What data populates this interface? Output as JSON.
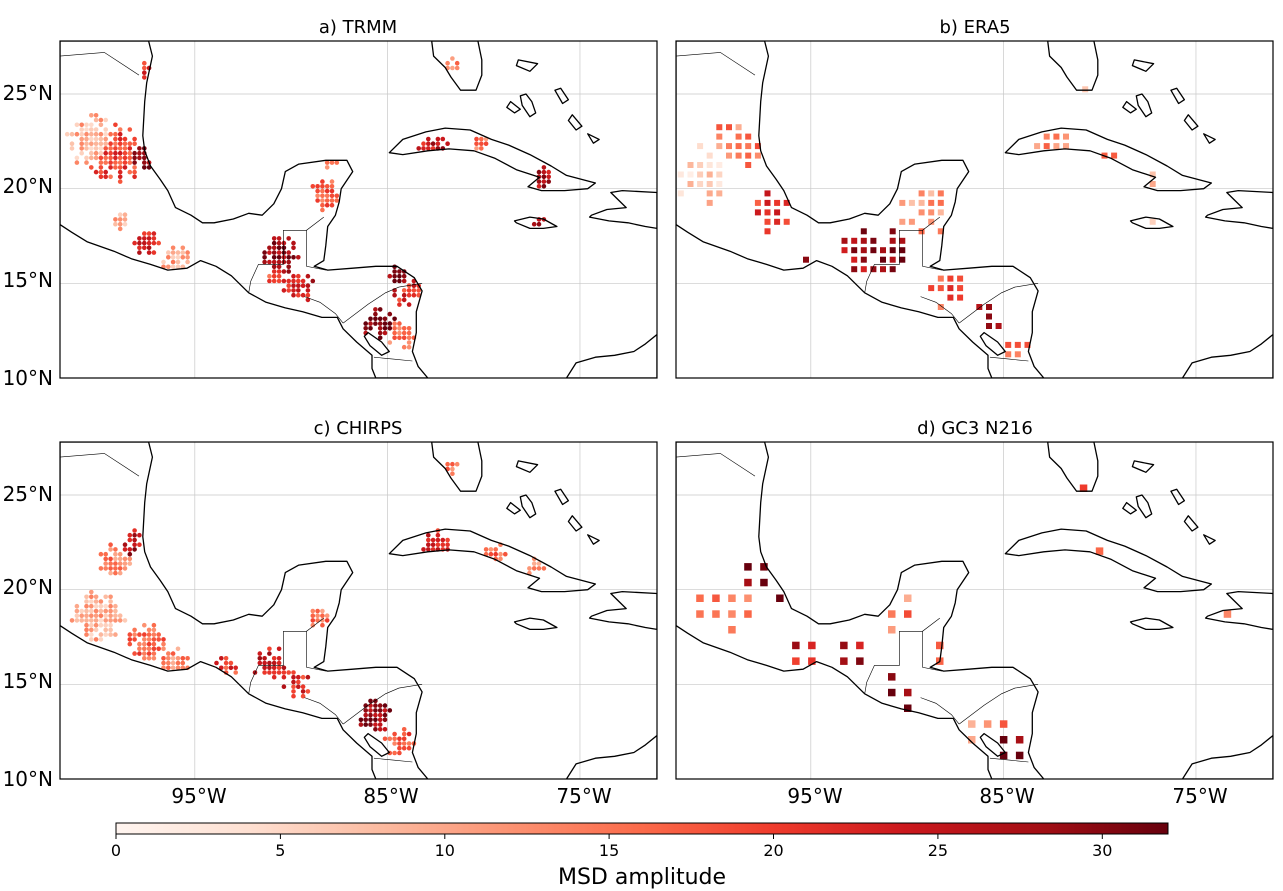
{
  "figure": {
    "panels": [
      {
        "title": "a) TRMM",
        "marker": "circle"
      },
      {
        "title": "b) ERA5",
        "marker": "square"
      },
      {
        "title": "c) CHIRPS",
        "marker": "circle"
      },
      {
        "title": "d) GC3 N216",
        "marker": "square"
      }
    ],
    "lat_ticks": [
      "25°N",
      "20°N",
      "15°N",
      "10°N"
    ],
    "lon_ticks": [
      "95°W",
      "85°W",
      "75°W"
    ],
    "colorbar": {
      "label": "MSD amplitude",
      "ticks": [
        "0",
        "5",
        "10",
        "15",
        "20",
        "25",
        "30"
      ],
      "range": [
        0,
        32
      ]
    },
    "colors": {
      "scale": [
        "#fff5f0",
        "#fee0d2",
        "#fcbba1",
        "#fc9272",
        "#fb6a4a",
        "#ef3b2c",
        "#cb181d",
        "#a50f15",
        "#67000d"
      ],
      "coast": "#000000",
      "grid": "#c8c8c8"
    }
  },
  "chart_data": {
    "type": "heatmap",
    "extent": {
      "lon": [
        -102,
        -71
      ],
      "lat": [
        10,
        27.8
      ]
    },
    "value_range": [
      0,
      32
    ],
    "panels": [
      {
        "name": "a) TRMM",
        "resolution_deg": 0.25,
        "clusters": [
          {
            "lon": -97.7,
            "lat": 21.7,
            "r": 0.9,
            "v": 30
          },
          {
            "lon": -99.0,
            "lat": 21.8,
            "r": 1.6,
            "v": 19
          },
          {
            "lon": -100.3,
            "lat": 22.5,
            "r": 1.4,
            "v": 9
          },
          {
            "lon": -98.8,
            "lat": 18.2,
            "r": 0.5,
            "v": 9
          },
          {
            "lon": -97.5,
            "lat": 17.2,
            "r": 0.7,
            "v": 22
          },
          {
            "lon": -96.0,
            "lat": 16.3,
            "r": 0.8,
            "v": 10
          },
          {
            "lon": -90.5,
            "lat": 16.5,
            "r": 1.0,
            "v": 29
          },
          {
            "lon": -89.7,
            "lat": 14.8,
            "r": 0.9,
            "v": 24
          },
          {
            "lon": -90.7,
            "lat": 15.2,
            "r": 0.6,
            "v": 19
          },
          {
            "lon": -88.2,
            "lat": 19.6,
            "r": 0.9,
            "v": 17
          },
          {
            "lon": -88.0,
            "lat": 21.5,
            "r": 0.5,
            "v": 16
          },
          {
            "lon": -87.6,
            "lat": 17.3,
            "r": 0.6,
            "v": 26
          },
          {
            "lon": -85.5,
            "lat": 13.0,
            "r": 0.9,
            "v": 31
          },
          {
            "lon": -84.3,
            "lat": 12.3,
            "r": 0.8,
            "v": 15
          },
          {
            "lon": -83.9,
            "lat": 14.5,
            "r": 0.8,
            "v": 22
          },
          {
            "lon": -84.5,
            "lat": 15.5,
            "r": 0.5,
            "v": 30
          },
          {
            "lon": -82.6,
            "lat": 22.1,
            "r": 0.8,
            "v": 25
          },
          {
            "lon": -80.2,
            "lat": 22.4,
            "r": 0.5,
            "v": 15
          },
          {
            "lon": -77.0,
            "lat": 20.6,
            "r": 0.6,
            "v": 27
          },
          {
            "lon": -77.2,
            "lat": 18.2,
            "r": 0.4,
            "v": 26
          },
          {
            "lon": -81.8,
            "lat": 26.5,
            "r": 0.5,
            "v": 14
          },
          {
            "lon": -97.5,
            "lat": 26.2,
            "r": 0.5,
            "v": 22
          }
        ]
      },
      {
        "name": "b) ERA5",
        "resolution_deg": 0.5,
        "clusters": [
          {
            "lon": -100.5,
            "lat": 20.7,
            "r": 1.6,
            "v": 6
          },
          {
            "lon": -98.8,
            "lat": 22.3,
            "r": 1.4,
            "v": 14
          },
          {
            "lon": -97.0,
            "lat": 18.8,
            "r": 1.2,
            "v": 20
          },
          {
            "lon": -95.4,
            "lat": 16.0,
            "r": 0.8,
            "v": 28
          },
          {
            "lon": -92.5,
            "lat": 16.6,
            "r": 1.2,
            "v": 27
          },
          {
            "lon": -91.0,
            "lat": 16.8,
            "r": 1.2,
            "v": 30
          },
          {
            "lon": -89.0,
            "lat": 18.8,
            "r": 1.4,
            "v": 12
          },
          {
            "lon": -88.0,
            "lat": 14.8,
            "r": 1.2,
            "v": 18
          },
          {
            "lon": -85.8,
            "lat": 13.0,
            "r": 0.9,
            "v": 30
          },
          {
            "lon": -84.4,
            "lat": 11.5,
            "r": 0.7,
            "v": 16
          },
          {
            "lon": -82.5,
            "lat": 22.2,
            "r": 1.2,
            "v": 14
          },
          {
            "lon": -79.5,
            "lat": 21.7,
            "r": 0.8,
            "v": 19
          },
          {
            "lon": -77.5,
            "lat": 20.3,
            "r": 0.7,
            "v": 12
          },
          {
            "lon": -81.0,
            "lat": 24.8,
            "r": 0.8,
            "v": 8
          },
          {
            "lon": -80.3,
            "lat": 19.4,
            "r": 0.3,
            "v": 24
          },
          {
            "lon": -77.0,
            "lat": 18.1,
            "r": 0.4,
            "v": 6
          }
        ]
      },
      {
        "name": "c) CHIRPS",
        "resolution_deg": 0.25,
        "clusters": [
          {
            "lon": -98.2,
            "lat": 22.5,
            "r": 0.7,
            "v": 26
          },
          {
            "lon": -99.2,
            "lat": 21.5,
            "r": 0.9,
            "v": 14
          },
          {
            "lon": -100.0,
            "lat": 18.6,
            "r": 1.4,
            "v": 9
          },
          {
            "lon": -97.5,
            "lat": 17.3,
            "r": 1.0,
            "v": 17
          },
          {
            "lon": -96.0,
            "lat": 16.1,
            "r": 0.8,
            "v": 13
          },
          {
            "lon": -93.5,
            "lat": 15.9,
            "r": 0.7,
            "v": 20
          },
          {
            "lon": -91.0,
            "lat": 16.0,
            "r": 1.0,
            "v": 24
          },
          {
            "lon": -89.8,
            "lat": 15.0,
            "r": 0.8,
            "v": 22
          },
          {
            "lon": -88.5,
            "lat": 18.5,
            "r": 0.6,
            "v": 15
          },
          {
            "lon": -85.7,
            "lat": 13.3,
            "r": 0.9,
            "v": 29
          },
          {
            "lon": -84.4,
            "lat": 12.0,
            "r": 0.8,
            "v": 18
          },
          {
            "lon": -82.4,
            "lat": 22.4,
            "r": 0.8,
            "v": 23
          },
          {
            "lon": -79.5,
            "lat": 21.8,
            "r": 0.7,
            "v": 16
          },
          {
            "lon": -77.3,
            "lat": 21.3,
            "r": 0.6,
            "v": 14
          },
          {
            "lon": -81.7,
            "lat": 26.5,
            "r": 0.4,
            "v": 15
          }
        ]
      },
      {
        "name": "d) GC3 N216",
        "resolution_deg": 0.83,
        "clusters": [
          {
            "lon": -99.5,
            "lat": 19.0,
            "r": 1.6,
            "v": 14
          },
          {
            "lon": -97.0,
            "lat": 21.0,
            "r": 1.6,
            "v": 31
          },
          {
            "lon": -95.0,
            "lat": 16.5,
            "r": 1.3,
            "v": 24
          },
          {
            "lon": -93.0,
            "lat": 16.5,
            "r": 1.3,
            "v": 27
          },
          {
            "lon": -90.5,
            "lat": 19.0,
            "r": 1.3,
            "v": 14
          },
          {
            "lon": -90.5,
            "lat": 14.5,
            "r": 1.1,
            "v": 31
          },
          {
            "lon": -88.0,
            "lat": 16.5,
            "r": 1.1,
            "v": 14
          },
          {
            "lon": -85.8,
            "lat": 13.0,
            "r": 1.3,
            "v": 13
          },
          {
            "lon": -84.5,
            "lat": 11.5,
            "r": 1.2,
            "v": 29
          },
          {
            "lon": -82.5,
            "lat": 21.8,
            "r": 1.2,
            "v": 30
          },
          {
            "lon": -80.0,
            "lat": 21.2,
            "r": 1.0,
            "v": 20
          },
          {
            "lon": -80.0,
            "lat": 25.5,
            "r": 1.3,
            "v": 24
          },
          {
            "lon": -82.0,
            "lat": 26.0,
            "r": 0.6,
            "v": 9
          },
          {
            "lon": -74.0,
            "lat": 19.0,
            "r": 1.0,
            "v": 16
          }
        ]
      }
    ]
  }
}
